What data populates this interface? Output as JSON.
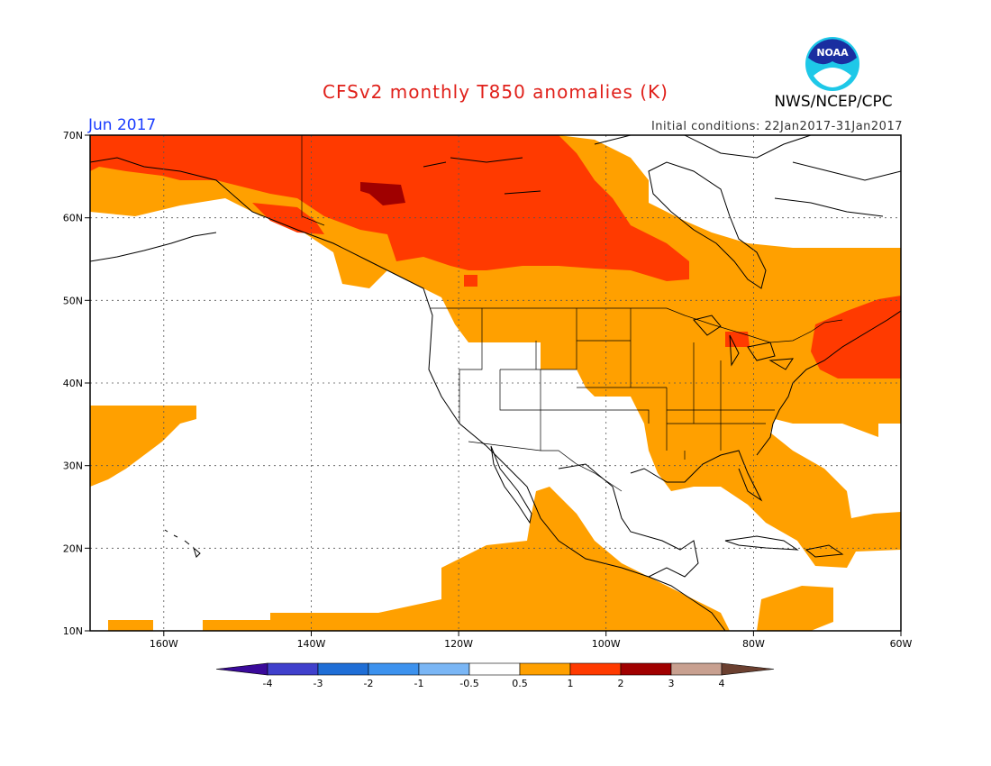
{
  "title": "CFSv2 monthly T850 anomalies (K)",
  "agency": "NWS/NCEP/CPC",
  "logo_text": "NOAA",
  "valid_month": "Jun 2017",
  "initial_conditions": "Initial conditions: 22Jan2017-31Jan2017",
  "lat_labels": [
    "70N",
    "60N",
    "50N",
    "40N",
    "30N",
    "20N",
    "10N"
  ],
  "lon_labels": [
    "160W",
    "140W",
    "120W",
    "100W",
    "80W",
    "60W"
  ],
  "colorbar": {
    "tick_labels": [
      "-4",
      "-3",
      "-2",
      "-1",
      "-0.5",
      "0.5",
      "1",
      "2",
      "3",
      "4"
    ],
    "colors": [
      "#3a0a9a",
      "#4040cc",
      "#1f6ed6",
      "#3d92ee",
      "#7ab6f5",
      "#ffffff",
      "#ffa000",
      "#ff3a00",
      "#a00000",
      "#c8a090",
      "#6b4030"
    ]
  },
  "chart_data": {
    "type": "heatmap",
    "variable": "T850 anomalies",
    "units": "K",
    "lat_range": [
      10,
      70
    ],
    "lon_range": [
      -170,
      -60
    ],
    "levels": [
      -4,
      -3,
      -2,
      -1,
      -0.5,
      0.5,
      1,
      2,
      3,
      4
    ]
  }
}
